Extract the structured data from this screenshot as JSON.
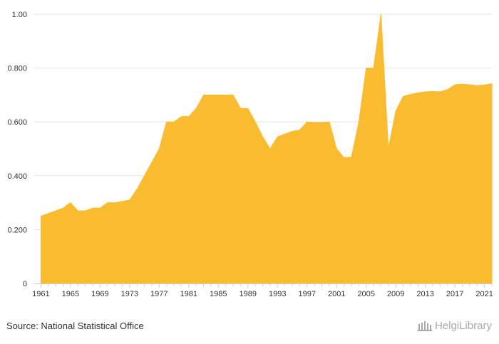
{
  "chart_data": {
    "type": "area",
    "title": "",
    "xlabel": "",
    "ylabel": "",
    "x_tick_labels": [
      "1961",
      "1965",
      "1969",
      "1973",
      "1977",
      "1981",
      "1985",
      "1989",
      "1993",
      "1997",
      "2001",
      "2005",
      "2009",
      "2013",
      "2017",
      "2021"
    ],
    "y_tick_labels": [
      "0",
      "0.200",
      "0.400",
      "0.600",
      "0.800",
      "1.00"
    ],
    "ylim": [
      0,
      1.0
    ],
    "xlim": [
      1960,
      2022
    ],
    "grid": true,
    "color": "#F9BC30",
    "x": [
      1961,
      1962,
      1963,
      1964,
      1965,
      1966,
      1967,
      1968,
      1969,
      1970,
      1971,
      1972,
      1973,
      1974,
      1975,
      1976,
      1977,
      1978,
      1979,
      1980,
      1981,
      1982,
      1983,
      1984,
      1985,
      1986,
      1987,
      1988,
      1989,
      1990,
      1991,
      1992,
      1993,
      1994,
      1995,
      1996,
      1997,
      1998,
      1999,
      2000,
      2001,
      2002,
      2003,
      2004,
      2005,
      2006,
      2007,
      2008,
      2009,
      2010,
      2011,
      2012,
      2013,
      2014,
      2015,
      2016,
      2017,
      2018,
      2019,
      2020,
      2021,
      2022
    ],
    "values": [
      0.25,
      0.26,
      0.27,
      0.28,
      0.3,
      0.27,
      0.27,
      0.28,
      0.28,
      0.3,
      0.3,
      0.305,
      0.31,
      0.35,
      0.4,
      0.45,
      0.5,
      0.6,
      0.6,
      0.62,
      0.62,
      0.65,
      0.7,
      0.7,
      0.7,
      0.7,
      0.7,
      0.65,
      0.65,
      0.6,
      0.545,
      0.5,
      0.545,
      0.555,
      0.565,
      0.57,
      0.6,
      0.598,
      0.598,
      0.6,
      0.5,
      0.467,
      0.47,
      0.6,
      0.8,
      0.8,
      1.0,
      0.5,
      0.64,
      0.695,
      0.702,
      0.708,
      0.712,
      0.713,
      0.712,
      0.72,
      0.738,
      0.74,
      0.738,
      0.735,
      0.737,
      0.742
    ]
  },
  "footer": {
    "source": "Source: National Statistical Office",
    "logo_text": "HelgiLibrary"
  }
}
